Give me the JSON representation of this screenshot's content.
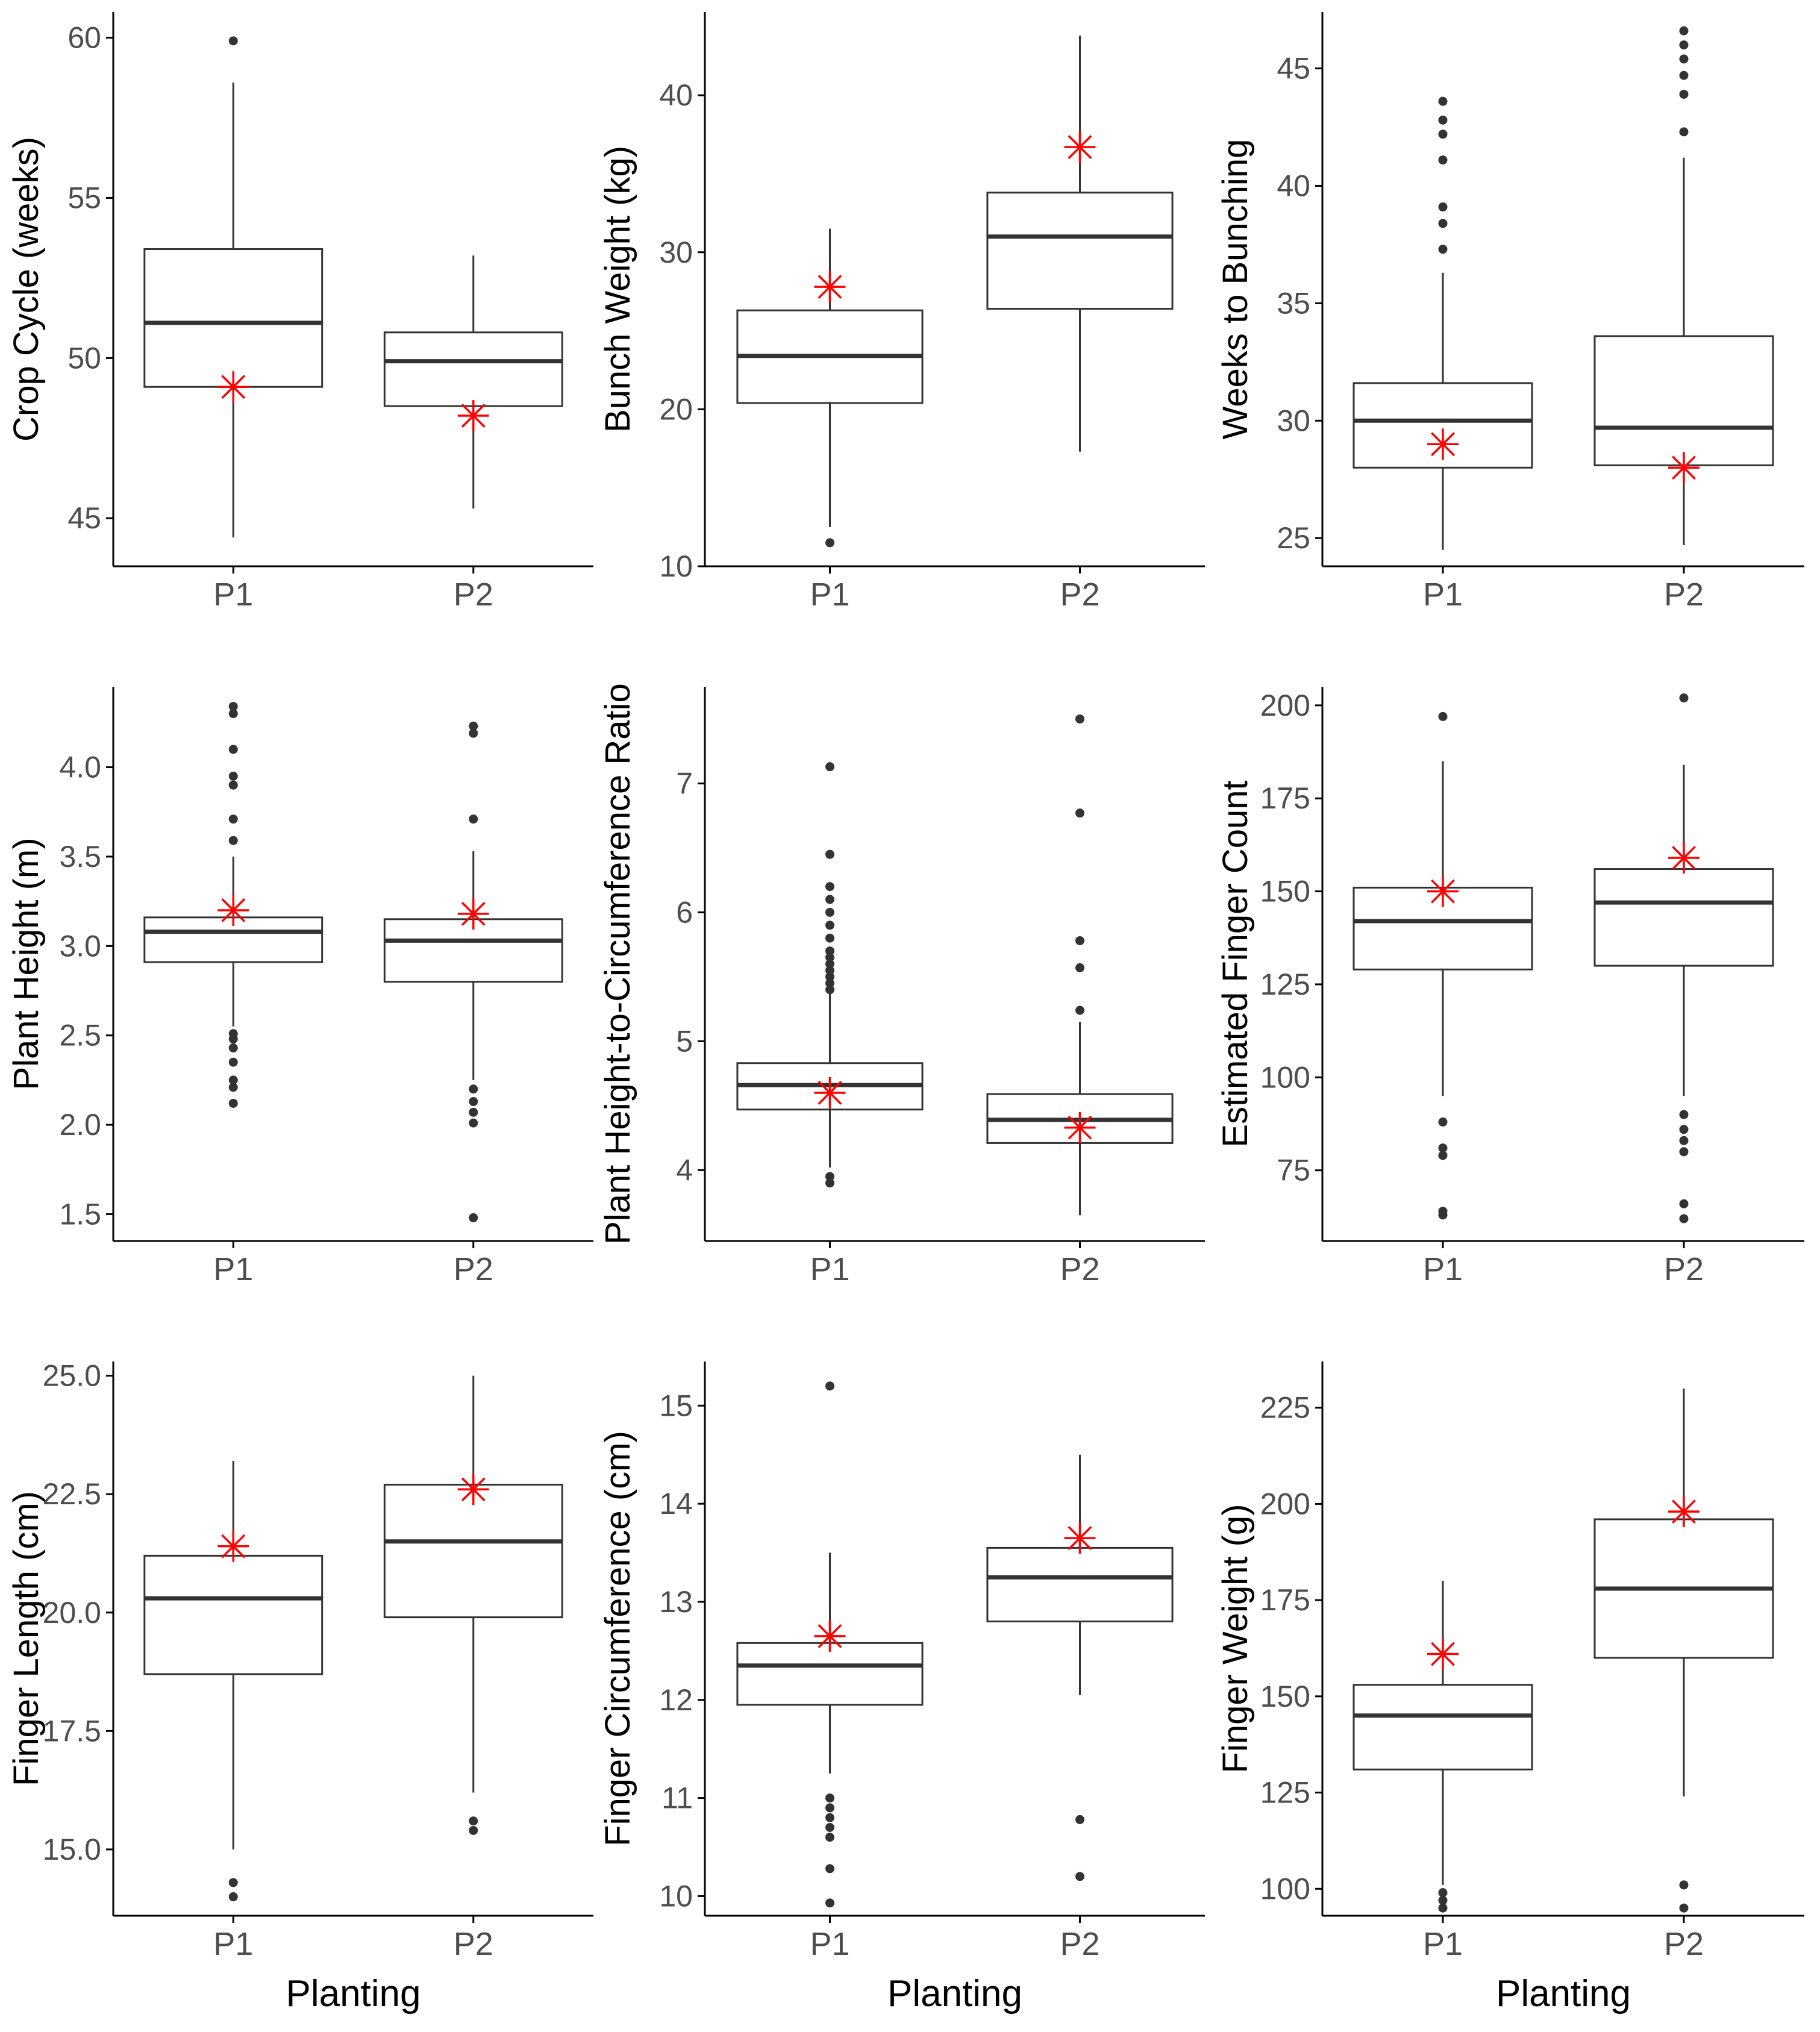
{
  "colors": {
    "box_line": "#333333",
    "axis_line": "#000000",
    "tick_text": "#4d4d4d",
    "title_text": "#000000",
    "outlier": "#333333",
    "mean_marker": "#ff0000"
  },
  "chart_data": [
    {
      "type": "box",
      "ylabel": "Crop Cycle (weeks)",
      "xlabel": "",
      "categories": [
        "P1",
        "P2"
      ],
      "yticks": [
        45,
        50,
        55,
        60
      ],
      "ylim": [
        43.5,
        60.8
      ],
      "boxes": [
        {
          "name": "P1",
          "whisker_low": 44.4,
          "q1": 49.1,
          "median": 51.1,
          "q3": 53.4,
          "whisker_high": 58.6,
          "outliers": [
            59.9
          ],
          "marker": 49.1
        },
        {
          "name": "P2",
          "whisker_low": 45.3,
          "q1": 48.5,
          "median": 49.9,
          "q3": 50.8,
          "whisker_high": 53.2,
          "outliers": [],
          "marker": 48.2
        }
      ]
    },
    {
      "type": "box",
      "ylabel": "Bunch Weight (kg)",
      "xlabel": "",
      "categories": [
        "P1",
        "P2"
      ],
      "yticks": [
        10,
        20,
        30,
        40
      ],
      "ylim": [
        10,
        45.3
      ],
      "boxes": [
        {
          "name": "P1",
          "whisker_low": 12.5,
          "q1": 20.4,
          "median": 23.4,
          "q3": 26.3,
          "whisker_high": 31.5,
          "outliers": [
            11.5
          ],
          "marker": 27.8
        },
        {
          "name": "P2",
          "whisker_low": 17.3,
          "q1": 26.4,
          "median": 31.0,
          "q3": 33.8,
          "whisker_high": 43.8,
          "outliers": [],
          "marker": 36.7
        }
      ]
    },
    {
      "type": "box",
      "ylabel": "Weeks to Bunching",
      "xlabel": "",
      "categories": [
        "P1",
        "P2"
      ],
      "yticks": [
        25,
        30,
        35,
        40,
        45
      ],
      "ylim": [
        23.8,
        47.4
      ],
      "boxes": [
        {
          "name": "P1",
          "whisker_low": 24.5,
          "q1": 28.0,
          "median": 30.0,
          "q3": 31.6,
          "whisker_high": 36.3,
          "outliers": [
            37.3,
            38.4,
            39.1,
            41.1,
            42.2,
            42.8,
            43.6
          ],
          "marker": 29.0
        },
        {
          "name": "P2",
          "whisker_low": 24.7,
          "q1": 28.1,
          "median": 29.7,
          "q3": 33.6,
          "whisker_high": 41.2,
          "outliers": [
            42.3,
            43.9,
            44.7,
            45.4,
            46.0,
            46.6
          ],
          "marker": 28.0
        }
      ]
    },
    {
      "type": "box",
      "ylabel": "Plant Height (m)",
      "xlabel": "",
      "categories": [
        "P1",
        "P2"
      ],
      "yticks": [
        1.5,
        2.0,
        2.5,
        3.0,
        3.5,
        4.0
      ],
      "ylim": [
        1.35,
        4.45
      ],
      "boxes": [
        {
          "name": "P1",
          "whisker_low": 2.55,
          "q1": 2.91,
          "median": 3.08,
          "q3": 3.16,
          "whisker_high": 3.5,
          "outliers": [
            2.12,
            2.21,
            2.25,
            2.35,
            2.43,
            2.48,
            2.51,
            3.59,
            3.71,
            3.9,
            3.95,
            4.1,
            4.3,
            4.34
          ],
          "marker": 3.2
        },
        {
          "name": "P2",
          "whisker_low": 2.25,
          "q1": 2.8,
          "median": 3.03,
          "q3": 3.15,
          "whisker_high": 3.53,
          "outliers": [
            1.48,
            2.01,
            2.07,
            2.13,
            2.2,
            3.71,
            4.19,
            4.23
          ],
          "marker": 3.18
        }
      ]
    },
    {
      "type": "box",
      "ylabel": "Plant Height-to-Circumference Ratio",
      "xlabel": "",
      "categories": [
        "P1",
        "P2"
      ],
      "yticks": [
        4,
        5,
        6,
        7
      ],
      "ylim": [
        3.45,
        7.75
      ],
      "boxes": [
        {
          "name": "P1",
          "whisker_low": 4.02,
          "q1": 4.47,
          "median": 4.66,
          "q3": 4.83,
          "whisker_high": 5.38,
          "outliers": [
            3.9,
            3.95,
            5.4,
            5.45,
            5.5,
            5.55,
            5.6,
            5.65,
            5.7,
            5.8,
            5.9,
            6.0,
            6.1,
            6.2,
            6.45,
            7.13
          ],
          "marker": 4.6
        },
        {
          "name": "P2",
          "whisker_low": 3.65,
          "q1": 4.21,
          "median": 4.39,
          "q3": 4.59,
          "whisker_high": 5.15,
          "outliers": [
            5.24,
            5.57,
            5.78,
            6.77,
            7.5
          ],
          "marker": 4.33
        }
      ]
    },
    {
      "type": "box",
      "ylabel": "Estimated Finger Count",
      "xlabel": "",
      "categories": [
        "P1",
        "P2"
      ],
      "yticks": [
        75,
        100,
        125,
        150,
        175,
        200
      ],
      "ylim": [
        56,
        205
      ],
      "boxes": [
        {
          "name": "P1",
          "whisker_low": 95,
          "q1": 129,
          "median": 142,
          "q3": 151,
          "whisker_high": 185,
          "outliers": [
            63,
            64,
            79,
            81,
            88,
            197
          ],
          "marker": 150
        },
        {
          "name": "P2",
          "whisker_low": 95,
          "q1": 130,
          "median": 147,
          "q3": 156,
          "whisker_high": 184,
          "outliers": [
            62,
            66,
            80,
            83,
            86,
            90,
            202
          ],
          "marker": 159
        }
      ]
    },
    {
      "type": "box",
      "ylabel": "Finger Length (cm)",
      "xlabel": "Planting",
      "categories": [
        "P1",
        "P2"
      ],
      "yticks": [
        15.0,
        17.5,
        20.0,
        22.5,
        25.0
      ],
      "ylim": [
        13.6,
        25.3
      ],
      "boxes": [
        {
          "name": "P1",
          "whisker_low": 15.0,
          "q1": 18.7,
          "median": 20.3,
          "q3": 21.2,
          "whisker_high": 23.2,
          "outliers": [
            14.0,
            14.3
          ],
          "marker": 21.4
        },
        {
          "name": "P2",
          "whisker_low": 16.2,
          "q1": 19.9,
          "median": 21.5,
          "q3": 22.7,
          "whisker_high": 25.0,
          "outliers": [
            15.4,
            15.6
          ],
          "marker": 22.6
        }
      ]
    },
    {
      "type": "box",
      "ylabel": "Finger Circumference (cm)",
      "xlabel": "Planting",
      "categories": [
        "P1",
        "P2"
      ],
      "yticks": [
        10,
        11,
        12,
        13,
        14,
        15
      ],
      "ylim": [
        9.8,
        15.45
      ],
      "boxes": [
        {
          "name": "P1",
          "whisker_low": 11.25,
          "q1": 11.95,
          "median": 12.35,
          "q3": 12.58,
          "whisker_high": 13.5,
          "outliers": [
            9.93,
            10.28,
            10.6,
            10.7,
            10.8,
            10.9,
            11.0,
            15.2
          ],
          "marker": 12.65
        },
        {
          "name": "P2",
          "whisker_low": 12.05,
          "q1": 12.8,
          "median": 13.25,
          "q3": 13.55,
          "whisker_high": 14.5,
          "outliers": [
            10.2,
            10.78
          ],
          "marker": 13.65
        }
      ]
    },
    {
      "type": "box",
      "ylabel": "Finger Weight (g)",
      "xlabel": "Planting",
      "categories": [
        "P1",
        "P2"
      ],
      "yticks": [
        100,
        125,
        150,
        175,
        200,
        225
      ],
      "ylim": [
        93,
        237
      ],
      "boxes": [
        {
          "name": "P1",
          "whisker_low": 101,
          "q1": 131,
          "median": 145,
          "q3": 153,
          "whisker_high": 180,
          "outliers": [
            95,
            97,
            99
          ],
          "marker": 161
        },
        {
          "name": "P2",
          "whisker_low": 124,
          "q1": 160,
          "median": 178,
          "q3": 196,
          "whisker_high": 230,
          "outliers": [
            95,
            101
          ],
          "marker": 198
        }
      ]
    }
  ]
}
